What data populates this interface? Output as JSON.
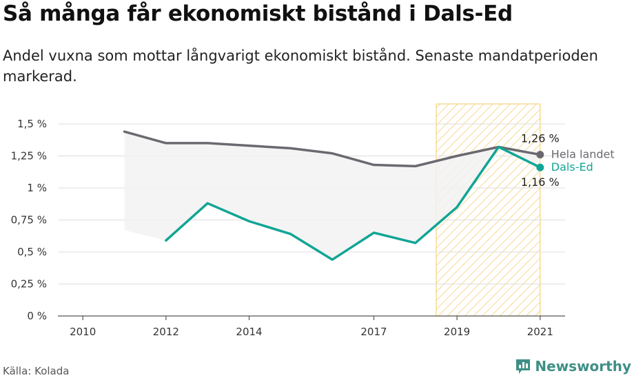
{
  "header": {
    "title": "Så många får ekonomiskt bistånd i Dals-Ed",
    "subtitle": "Andel vuxna som mottar långvarigt ekonomiskt bistånd. Senaste mandatperioden markerad."
  },
  "footer": {
    "source": "Källa: Kolada",
    "brand": "Newsworthy",
    "brand_icon": "bar-chart-speech-bubble-icon",
    "brand_color": "#3f8f86"
  },
  "chart_data": {
    "type": "line",
    "title": "Så många får ekonomiskt bistånd i Dals-Ed",
    "x_ticks": [
      2010,
      2012,
      2014,
      2017,
      2019,
      2021
    ],
    "xlim": [
      2009.4,
      2021.6
    ],
    "ylim": [
      0,
      1.5
    ],
    "y_ticks": [
      {
        "value": 0,
        "label": "0 %"
      },
      {
        "value": 0.25,
        "label": "0,25 %"
      },
      {
        "value": 0.5,
        "label": "0,5 %"
      },
      {
        "value": 0.75,
        "label": "0,75 %"
      },
      {
        "value": 1.0,
        "label": "1 %"
      },
      {
        "value": 1.25,
        "label": "1,25 %"
      },
      {
        "value": 1.5,
        "label": "1,5 %"
      }
    ],
    "grid": true,
    "highlight_period": {
      "from": 2018.5,
      "to": 2021,
      "color": "#f5d27a"
    },
    "series": [
      {
        "name": "Hela landet",
        "color": "#6b6970",
        "points": [
          [
            2011,
            1.44
          ],
          [
            2012,
            1.35
          ],
          [
            2013,
            1.35
          ],
          [
            2014,
            1.33
          ],
          [
            2015,
            1.31
          ],
          [
            2016,
            1.27
          ],
          [
            2017,
            1.18
          ],
          [
            2018,
            1.17
          ],
          [
            2019,
            1.25
          ],
          [
            2020,
            1.32
          ],
          [
            2021,
            1.26
          ]
        ],
        "end_value_label": "1,26 %"
      },
      {
        "name": "Dals-Ed",
        "color": "#11a595",
        "points": [
          [
            2012,
            0.59
          ],
          [
            2013,
            0.88
          ],
          [
            2014,
            0.74
          ],
          [
            2015,
            0.64
          ],
          [
            2016,
            0.44
          ],
          [
            2017,
            0.65
          ],
          [
            2018,
            0.57
          ],
          [
            2019,
            0.85
          ],
          [
            2020,
            1.32
          ],
          [
            2021,
            1.16
          ]
        ],
        "end_value_label": "1,16 %"
      }
    ]
  }
}
